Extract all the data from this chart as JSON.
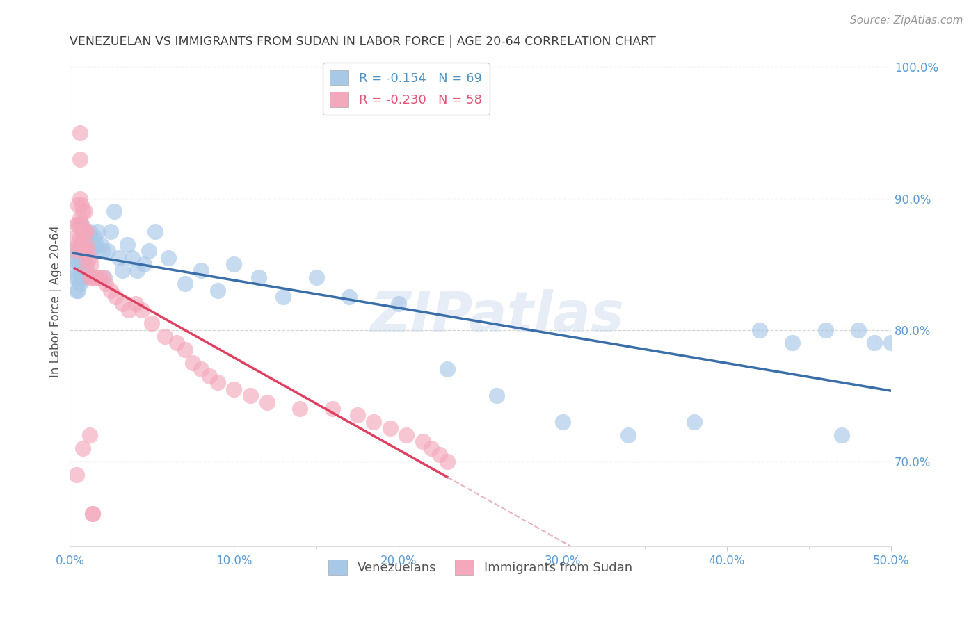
{
  "title": "VENEZUELAN VS IMMIGRANTS FROM SUDAN IN LABOR FORCE | AGE 20-64 CORRELATION CHART",
  "source": "Source: ZipAtlas.com",
  "ylabel": "In Labor Force | Age 20-64",
  "ven_R": -0.154,
  "ven_N": 69,
  "sud_R": -0.23,
  "sud_N": 58,
  "xlim": [
    0.0,
    0.5
  ],
  "ylim": [
    0.635,
    1.008
  ],
  "yticks": [
    0.7,
    0.8,
    0.9,
    1.0
  ],
  "xticks": [
    0.0,
    0.1,
    0.2,
    0.3,
    0.4,
    0.5
  ],
  "ven_color": "#a8c8e8",
  "sud_color": "#f4a8bc",
  "ven_line_color": "#3a6ea8",
  "sud_line_color": "#e04060",
  "sud_dash_color": "#e8b0b8",
  "background_color": "#ffffff",
  "grid_color": "#cccccc",
  "axis_label_color": "#5b9bd5",
  "title_color": "#404040",
  "watermark": "ZIPatlas",
  "ven_x": [
    0.002,
    0.003,
    0.003,
    0.004,
    0.004,
    0.004,
    0.005,
    0.005,
    0.005,
    0.005,
    0.006,
    0.006,
    0.006,
    0.006,
    0.007,
    0.007,
    0.007,
    0.007,
    0.008,
    0.008,
    0.008,
    0.009,
    0.009,
    0.009,
    0.01,
    0.01,
    0.011,
    0.012,
    0.013,
    0.014,
    0.015,
    0.016,
    0.017,
    0.019,
    0.02,
    0.021,
    0.023,
    0.025,
    0.027,
    0.03,
    0.032,
    0.035,
    0.038,
    0.041,
    0.045,
    0.048,
    0.052,
    0.06,
    0.07,
    0.08,
    0.09,
    0.1,
    0.115,
    0.13,
    0.15,
    0.17,
    0.2,
    0.23,
    0.26,
    0.3,
    0.34,
    0.38,
    0.42,
    0.44,
    0.46,
    0.47,
    0.48,
    0.49,
    0.5
  ],
  "ven_y": [
    0.855,
    0.84,
    0.86,
    0.855,
    0.845,
    0.83,
    0.86,
    0.85,
    0.84,
    0.83,
    0.88,
    0.86,
    0.85,
    0.835,
    0.88,
    0.865,
    0.85,
    0.84,
    0.87,
    0.86,
    0.845,
    0.875,
    0.855,
    0.84,
    0.87,
    0.845,
    0.865,
    0.875,
    0.87,
    0.86,
    0.87,
    0.865,
    0.875,
    0.865,
    0.86,
    0.84,
    0.86,
    0.875,
    0.89,
    0.855,
    0.845,
    0.865,
    0.855,
    0.845,
    0.85,
    0.86,
    0.875,
    0.855,
    0.835,
    0.845,
    0.83,
    0.85,
    0.84,
    0.825,
    0.84,
    0.825,
    0.82,
    0.77,
    0.75,
    0.73,
    0.72,
    0.73,
    0.8,
    0.79,
    0.8,
    0.72,
    0.8,
    0.79,
    0.79
  ],
  "sud_x": [
    0.003,
    0.004,
    0.004,
    0.005,
    0.005,
    0.005,
    0.006,
    0.006,
    0.006,
    0.007,
    0.007,
    0.007,
    0.008,
    0.008,
    0.008,
    0.009,
    0.009,
    0.009,
    0.01,
    0.01,
    0.01,
    0.011,
    0.012,
    0.012,
    0.013,
    0.014,
    0.015,
    0.016,
    0.018,
    0.02,
    0.022,
    0.025,
    0.028,
    0.032,
    0.036,
    0.04,
    0.044,
    0.05,
    0.058,
    0.065,
    0.07,
    0.075,
    0.08,
    0.085,
    0.09,
    0.1,
    0.11,
    0.12,
    0.14,
    0.16,
    0.175,
    0.185,
    0.195,
    0.205,
    0.215,
    0.22,
    0.225,
    0.23
  ],
  "sud_y": [
    0.87,
    0.88,
    0.86,
    0.895,
    0.88,
    0.865,
    0.9,
    0.885,
    0.87,
    0.895,
    0.88,
    0.865,
    0.89,
    0.875,
    0.86,
    0.89,
    0.875,
    0.86,
    0.875,
    0.865,
    0.85,
    0.86,
    0.855,
    0.84,
    0.85,
    0.84,
    0.84,
    0.84,
    0.84,
    0.84,
    0.835,
    0.83,
    0.825,
    0.82,
    0.815,
    0.82,
    0.815,
    0.805,
    0.795,
    0.79,
    0.785,
    0.775,
    0.77,
    0.765,
    0.76,
    0.755,
    0.75,
    0.745,
    0.74,
    0.74,
    0.735,
    0.73,
    0.725,
    0.72,
    0.715,
    0.71,
    0.705,
    0.7
  ],
  "sud_outlier_x": [
    0.004,
    0.006,
    0.006,
    0.008,
    0.012,
    0.014,
    0.014
  ],
  "sud_outlier_y": [
    0.69,
    0.95,
    0.93,
    0.71,
    0.72,
    0.66,
    0.66
  ]
}
